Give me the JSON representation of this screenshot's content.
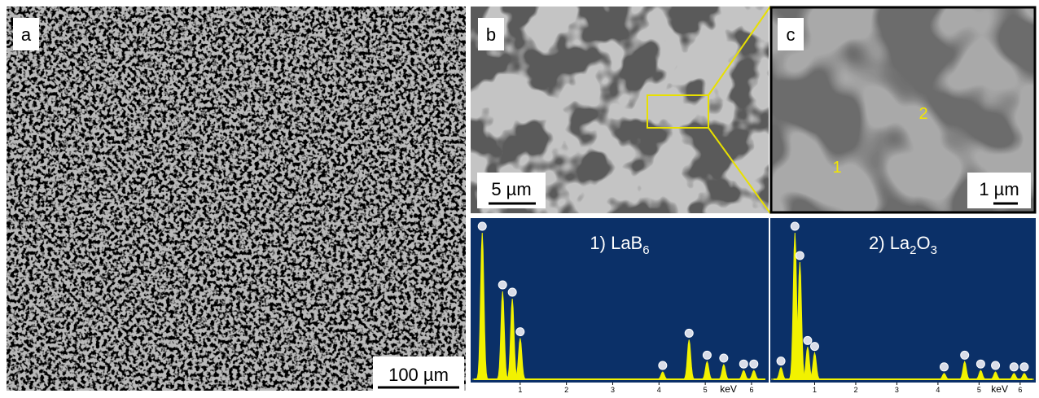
{
  "panel_a": {
    "label": "a",
    "scale_bar": "100 µm"
  },
  "panel_b": {
    "label": "b",
    "scale_bar": "5 µm"
  },
  "panel_c": {
    "label": "c",
    "scale_bar": "1 µm",
    "points": [
      "1",
      "2"
    ]
  },
  "spectra": [
    {
      "title": [
        "1) LaB",
        "6"
      ],
      "x_label": "keV",
      "xlim": [
        0,
        6.3
      ],
      "xticks": [
        1,
        2,
        3,
        4,
        5,
        6
      ],
      "peaks": [
        {
          "x": 0.18,
          "height": 100
        },
        {
          "x": 0.62,
          "height": 60
        },
        {
          "x": 0.83,
          "height": 55
        },
        {
          "x": 1.0,
          "height": 28
        },
        {
          "x": 4.08,
          "height": 5
        },
        {
          "x": 4.65,
          "height": 27
        },
        {
          "x": 5.04,
          "height": 12
        },
        {
          "x": 5.4,
          "height": 10
        },
        {
          "x": 5.83,
          "height": 6
        },
        {
          "x": 6.05,
          "height": 6
        }
      ]
    },
    {
      "title": [
        "2) La",
        "2",
        "O",
        "3"
      ],
      "x_label": "keV",
      "xlim": [
        0,
        6.3
      ],
      "xticks": [
        1,
        2,
        3,
        4,
        5,
        6
      ],
      "peaks": [
        {
          "x": 0.18,
          "height": 8
        },
        {
          "x": 0.52,
          "height": 100
        },
        {
          "x": 0.64,
          "height": 80
        },
        {
          "x": 0.83,
          "height": 22
        },
        {
          "x": 1.0,
          "height": 18
        },
        {
          "x": 4.15,
          "height": 4
        },
        {
          "x": 4.65,
          "height": 12
        },
        {
          "x": 5.04,
          "height": 6
        },
        {
          "x": 5.4,
          "height": 5
        },
        {
          "x": 5.85,
          "height": 4
        },
        {
          "x": 6.1,
          "height": 4
        }
      ]
    }
  ]
}
